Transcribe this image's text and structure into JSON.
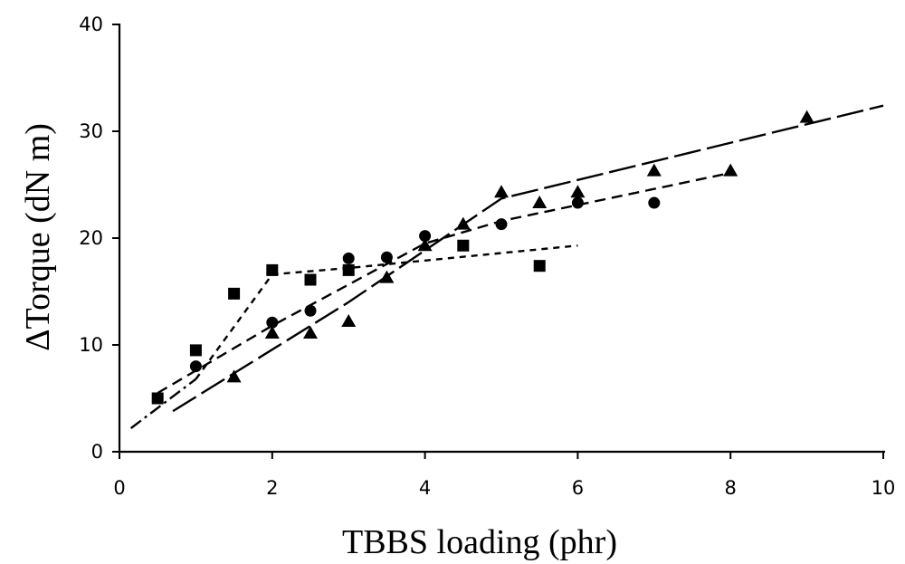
{
  "chart_data": {
    "type": "scatter",
    "xlabel": "TBBS loading (phr)",
    "ylabel": "ΔTorque (dN m)",
    "xlim": [
      0,
      10
    ],
    "ylim": [
      0,
      40
    ],
    "x_ticks": [
      "0",
      "2",
      "4",
      "6",
      "8",
      "10"
    ],
    "y_ticks": [
      "0",
      "10",
      "20",
      "30",
      "40"
    ],
    "grid": false,
    "legend": "none",
    "series": [
      {
        "marker": "square",
        "points": [
          [
            0.5,
            5.0
          ],
          [
            1.0,
            9.5
          ],
          [
            1.5,
            14.8
          ],
          [
            2.0,
            17.0
          ],
          [
            2.5,
            16.1
          ],
          [
            3.0,
            17.0
          ],
          [
            4.5,
            19.3
          ],
          [
            5.5,
            17.4
          ]
        ],
        "fit_line": {
          "style": "dash-dot then short-dash",
          "points": [
            [
              0.15,
              2.2
            ],
            [
              1.0,
              6.8
            ],
            [
              2.0,
              16.6
            ],
            [
              3.0,
              17.2
            ],
            [
              4.0,
              17.9
            ],
            [
              6.0,
              19.3
            ]
          ]
        }
      },
      {
        "marker": "circle",
        "points": [
          [
            1.0,
            8.0
          ],
          [
            2.0,
            12.1
          ],
          [
            2.5,
            13.2
          ],
          [
            3.0,
            18.1
          ],
          [
            3.5,
            18.2
          ],
          [
            4.0,
            20.2
          ],
          [
            5.0,
            21.3
          ],
          [
            6.0,
            23.3
          ],
          [
            7.0,
            23.3
          ]
        ],
        "fit_line": {
          "style": "medium dash",
          "points": [
            [
              0.5,
              5.5
            ],
            [
              2.0,
              11.8
            ],
            [
              4.0,
              19.5
            ],
            [
              5.0,
              21.6
            ],
            [
              7.0,
              24.6
            ],
            [
              8.0,
              26.1
            ]
          ]
        }
      },
      {
        "marker": "triangle",
        "points": [
          [
            1.5,
            7.0
          ],
          [
            2.0,
            11.1
          ],
          [
            2.5,
            11.1
          ],
          [
            3.0,
            12.2
          ],
          [
            3.5,
            16.3
          ],
          [
            4.0,
            19.3
          ],
          [
            4.5,
            21.3
          ],
          [
            5.0,
            24.3
          ],
          [
            5.5,
            23.3
          ],
          [
            6.0,
            24.3
          ],
          [
            7.0,
            26.3
          ],
          [
            8.0,
            26.3
          ],
          [
            9.0,
            31.3
          ]
        ],
        "fit_line": {
          "style": "long dash",
          "points": [
            [
              0.7,
              3.8
            ],
            [
              3.0,
              14.0
            ],
            [
              5.0,
              23.7
            ],
            [
              10.0,
              32.4
            ]
          ]
        }
      }
    ]
  }
}
